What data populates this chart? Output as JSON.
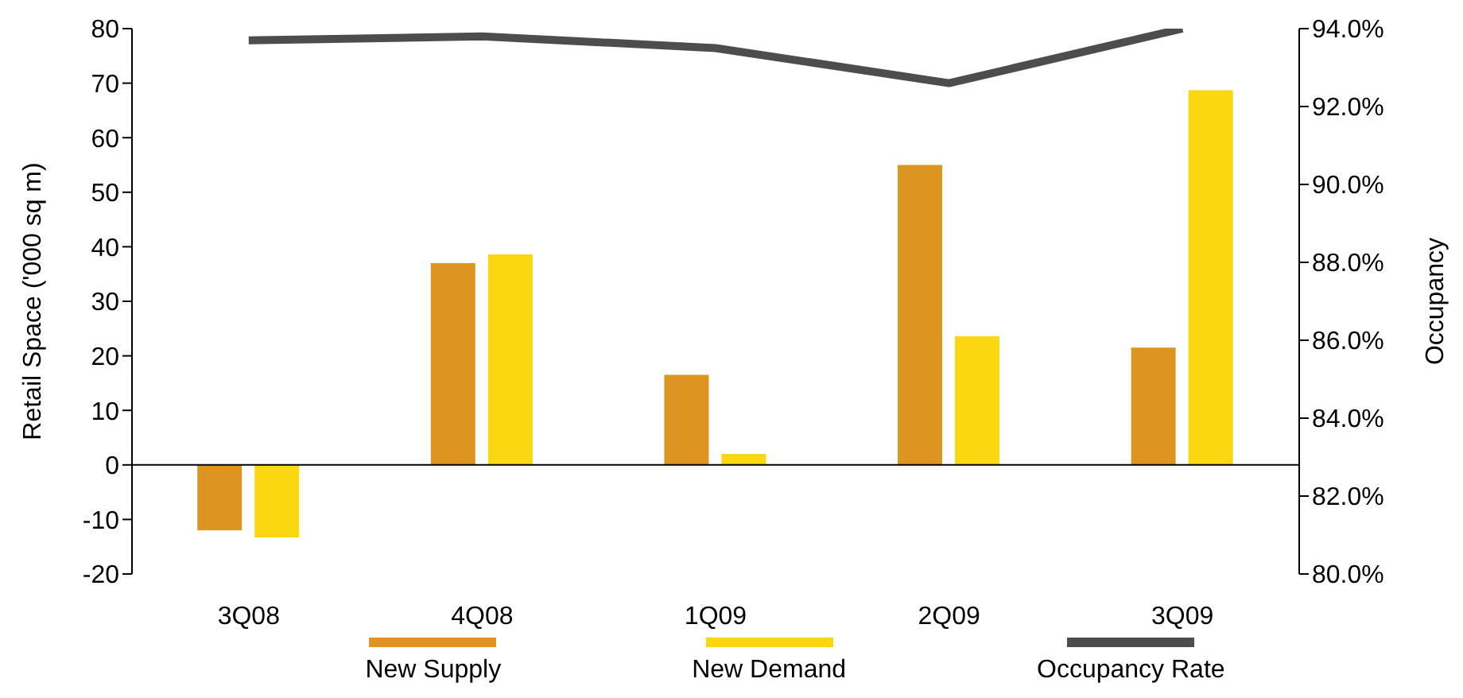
{
  "chart_data": {
    "type": "bar",
    "categories": [
      "3Q08",
      "4Q08",
      "1Q09",
      "2Q09",
      "3Q09"
    ],
    "ylabel": "Retail Space ('000 sq m)",
    "y2label": "Occupancy",
    "ylim": [
      -20,
      80
    ],
    "yticks": [
      -20,
      -10,
      0,
      10,
      20,
      30,
      40,
      50,
      60,
      70,
      80
    ],
    "y2lim": [
      80,
      94
    ],
    "y2ticks": [
      {
        "value": 80,
        "label": "80.0%"
      },
      {
        "value": 82,
        "label": "82.0%"
      },
      {
        "value": 84,
        "label": "84.0%"
      },
      {
        "value": 86,
        "label": "86.0%"
      },
      {
        "value": 88,
        "label": "88.0%"
      },
      {
        "value": 90,
        "label": "90.0%"
      },
      {
        "value": 92,
        "label": "92.0%"
      },
      {
        "value": 94,
        "label": "94.0%"
      }
    ],
    "series": [
      {
        "name": "New Supply",
        "color": "#dd9420",
        "values": [
          -12,
          37,
          16.5,
          55,
          21.5
        ]
      },
      {
        "name": "New Demand",
        "color": "#fad710",
        "values": [
          -13.3,
          38.6,
          2,
          23.6,
          68.7
        ]
      },
      {
        "name": "Occupancy Rate",
        "type": "line",
        "axis": "y2",
        "color": "#4d4d4d",
        "values": [
          93.7,
          93.8,
          93.5,
          92.6,
          94
        ]
      }
    ],
    "ref_lines": [
      {
        "axis": "y",
        "value": 0,
        "color": "#000000"
      }
    ],
    "marker": "none",
    "grid": false,
    "legend": "bottom"
  }
}
